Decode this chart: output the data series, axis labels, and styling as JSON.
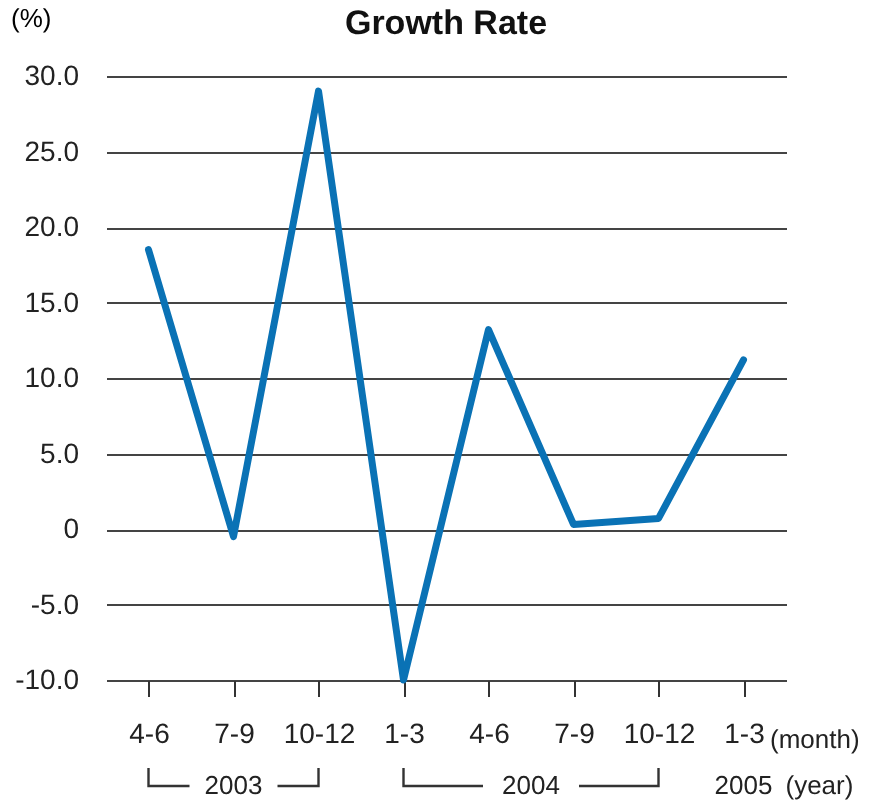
{
  "chart_data": {
    "type": "line",
    "title": "Growth Rate",
    "ylabel": "(%)",
    "categories": [
      "4-6",
      "7-9",
      "10-12",
      "1-3",
      "4-6",
      "7-9",
      "10-12",
      "1-3"
    ],
    "series": [
      {
        "color": "#0a72b5",
        "values": [
          18.5,
          -0.5,
          29,
          -10,
          13.2,
          0.3,
          0.7,
          11.2
        ]
      }
    ],
    "ylim": [
      -10,
      30
    ],
    "yticks": [
      {
        "value": -10,
        "label": "-10.0"
      },
      {
        "value": -5,
        "label": "-5.0"
      },
      0,
      {
        "value": 5,
        "label": "5.0"
      },
      {
        "value": 10,
        "label": "10.0"
      },
      {
        "value": 15,
        "label": "15.0"
      },
      {
        "value": 20,
        "label": "20.0"
      },
      {
        "value": 25,
        "label": "25.0"
      },
      {
        "value": 30,
        "label": "30.0"
      }
    ],
    "grid": "y",
    "legend": false,
    "marker": "none",
    "line_style": "solid",
    "annotations": [
      "(month)",
      "2003",
      "2004",
      "2005",
      "(year)"
    ]
  }
}
